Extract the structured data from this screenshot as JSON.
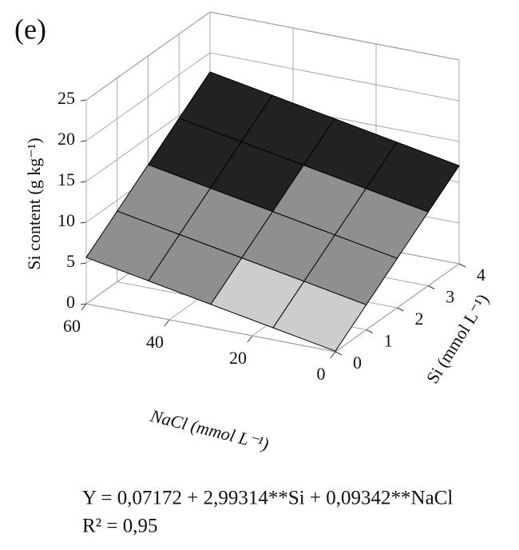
{
  "chart_data": {
    "type": "surface",
    "panel_label": "(e)",
    "zlabel": "Si content (g kg⁻¹)",
    "xlabel": "NaCl (mmol L⁻¹)",
    "ylabel": "Si (mmol L⁻¹)",
    "x": [
      0,
      15,
      30,
      45,
      60
    ],
    "y": [
      0,
      1,
      2,
      3,
      4
    ],
    "z": [
      [
        0.07,
        1.47,
        2.87,
        4.28,
        5.68
      ],
      [
        3.06,
        4.47,
        5.87,
        7.27,
        8.67
      ],
      [
        6.06,
        7.46,
        8.86,
        10.26,
        11.66
      ],
      [
        9.05,
        10.45,
        11.85,
        13.26,
        14.66
      ],
      [
        12.04,
        13.45,
        14.85,
        16.25,
        17.65
      ]
    ],
    "xlim": [
      0,
      60
    ],
    "xticks": [
      0,
      20,
      40,
      60
    ],
    "ylim": [
      0,
      4
    ],
    "yticks": [
      0,
      1,
      2,
      3,
      4
    ],
    "zlim": [
      0,
      25
    ],
    "zticks": [
      0,
      5,
      10,
      15,
      20,
      25
    ],
    "color_breaks": [
      5,
      10
    ],
    "colors": [
      "#cdcdcd",
      "#8f8f8f",
      "#222222"
    ],
    "grid": true,
    "equation": "Y = 0,07172 + 2,99314**Si + 0,09342**NaCl",
    "r_squared": "R² = 0,95"
  }
}
